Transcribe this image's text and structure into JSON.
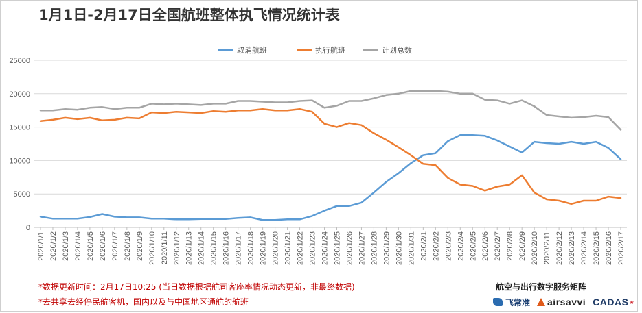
{
  "chart_data": {
    "type": "line",
    "title": "1月1日-2月17日全国航班整体执飞情况统计表",
    "xlabel": "",
    "ylabel": "",
    "ylim": [
      0,
      25000
    ],
    "yticks": [
      0,
      5000,
      10000,
      15000,
      20000,
      25000
    ],
    "grid": true,
    "legend_position": "top",
    "x": [
      "2020/1/1",
      "2020/1/2",
      "2020/1/3",
      "2020/1/4",
      "2020/1/5",
      "2020/1/6",
      "2020/1/7",
      "2020/1/8",
      "2020/1/9",
      "2020/1/10",
      "2020/1/11",
      "2020/1/12",
      "2020/1/13",
      "2020/1/14",
      "2020/1/15",
      "2020/1/16",
      "2020/1/17",
      "2020/1/18",
      "2020/1/19",
      "2020/1/20",
      "2020/1/21",
      "2020/1/22",
      "2020/1/23",
      "2020/1/24",
      "2020/1/25",
      "2020/1/26",
      "2020/1/27",
      "2020/1/28",
      "2020/1/29",
      "2020/1/30",
      "2020/1/31",
      "2020/2/1",
      "2020/2/2",
      "2020/2/3",
      "2020/2/4",
      "2020/2/5",
      "2020/2/6",
      "2020/2/7",
      "2020/2/8",
      "2020/2/9",
      "2020/2/10",
      "2020/2/11",
      "2020/2/12",
      "2020/2/13",
      "2020/2/14",
      "2020/2/15",
      "2020/2/16",
      "2020/2/17"
    ],
    "series": [
      {
        "name": "取消航班",
        "color": "#5b9bd5",
        "values": [
          1600,
          1300,
          1300,
          1300,
          1550,
          2000,
          1600,
          1500,
          1500,
          1300,
          1300,
          1200,
          1200,
          1250,
          1250,
          1250,
          1400,
          1500,
          1100,
          1100,
          1200,
          1200,
          1700,
          2500,
          3200,
          3200,
          3700,
          5200,
          6800,
          8100,
          9600,
          10800,
          11100,
          12900,
          13800,
          13800,
          13700,
          13000,
          12100,
          11200,
          12800,
          12600,
          12500,
          12800,
          12500,
          12800,
          11900,
          10200
        ]
      },
      {
        "name": "执行航班",
        "color": "#ed7d31",
        "values": [
          15900,
          16100,
          16400,
          16200,
          16400,
          16000,
          16100,
          16400,
          16300,
          17200,
          17100,
          17300,
          17200,
          17100,
          17400,
          17300,
          17500,
          17500,
          17700,
          17500,
          17500,
          17700,
          17300,
          15500,
          15000,
          15600,
          15300,
          14100,
          13100,
          12000,
          10800,
          9500,
          9300,
          7400,
          6400,
          6200,
          5500,
          6100,
          6400,
          7800,
          5200,
          4200,
          4000,
          3500,
          4000,
          4000,
          4600,
          4400
        ]
      },
      {
        "name": "计划总数",
        "color": "#a5a5a5",
        "values": [
          17500,
          17500,
          17700,
          17600,
          17900,
          18000,
          17700,
          17900,
          17900,
          18500,
          18400,
          18500,
          18400,
          18300,
          18500,
          18500,
          18900,
          18900,
          18800,
          18700,
          18700,
          18900,
          19000,
          17900,
          18200,
          18900,
          18900,
          19300,
          19800,
          20000,
          20400,
          20400,
          20400,
          20300,
          20000,
          20000,
          19100,
          19000,
          18500,
          19000,
          18100,
          16800,
          16600,
          16400,
          16500,
          16700,
          16500,
          14600
        ]
      }
    ]
  },
  "notes": [
    "*数据更新时间：2月17日10:25 (当日数据根据航司客座率情况动态更新，非最终数据)",
    "*去共享去经停民航客机，国内以及与中国地区通航的航班"
  ],
  "brand": {
    "title": "航空与出行数字服务矩阵",
    "logos": [
      "飞常准",
      "airsavvi",
      "CADAS"
    ]
  }
}
